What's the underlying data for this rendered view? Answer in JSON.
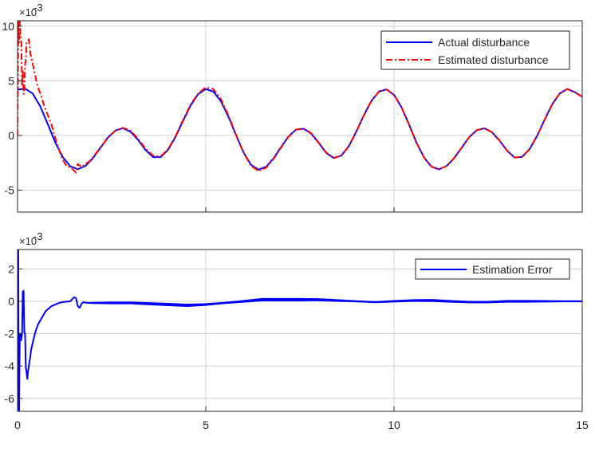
{
  "chart_data": [
    {
      "type": "line",
      "title": "",
      "xlabel": "",
      "ylabel": "",
      "xlim": [
        0,
        15
      ],
      "ylim": [
        -7,
        10.5
      ],
      "y_scale_exponent_label": "×10",
      "y_scale_exponent": "-3",
      "grid": true,
      "legend_position": "top-right",
      "x_ticks": [
        "0",
        "5",
        "10",
        "15"
      ],
      "y_ticks": [
        "-5",
        "0",
        "5",
        "10"
      ],
      "series": [
        {
          "name": "Actual disturbance",
          "color": "#0000ff",
          "style": "solid",
          "x": [
            0,
            0.2,
            0.4,
            0.6,
            0.8,
            1.0,
            1.2,
            1.4,
            1.6,
            1.8,
            2.0,
            2.2,
            2.4,
            2.6,
            2.8,
            3.0,
            3.2,
            3.4,
            3.6,
            3.8,
            4.0,
            4.2,
            4.4,
            4.6,
            4.8,
            5.0,
            5.2,
            5.4,
            5.6,
            5.8,
            6.0,
            6.2,
            6.4,
            6.6,
            6.8,
            7.0,
            7.2,
            7.4,
            7.6,
            7.8,
            8.0,
            8.2,
            8.4,
            8.6,
            8.8,
            9.0,
            9.2,
            9.4,
            9.6,
            9.8,
            10.0,
            10.2,
            10.4,
            10.6,
            10.8,
            11.0,
            11.2,
            11.4,
            11.6,
            11.8,
            12.0,
            12.2,
            12.4,
            12.6,
            12.8,
            13.0,
            13.2,
            13.4,
            13.6,
            13.8,
            14.0,
            14.2,
            14.4,
            14.6,
            14.8,
            15.0
          ],
          "values": [
            4.2,
            4.28,
            3.85,
            2.69,
            1.07,
            -0.61,
            -1.97,
            -2.82,
            -3.08,
            -2.79,
            -2.08,
            -1.13,
            -0.18,
            0.46,
            0.67,
            0.35,
            -0.39,
            -1.32,
            -1.98,
            -1.98,
            -1.3,
            -0.1,
            1.37,
            2.77,
            3.8,
            4.25,
            4.02,
            3.14,
            1.74,
            0.07,
            -1.52,
            -2.68,
            -3.12,
            -2.87,
            -2.09,
            -1.05,
            -0.08,
            0.55,
            0.62,
            0.17,
            -0.67,
            -1.59,
            -2.06,
            -1.84,
            -0.97,
            0.37,
            1.86,
            3.17,
            4.02,
            4.22,
            3.72,
            2.57,
            1.0,
            -0.68,
            -2.03,
            -2.86,
            -3.09,
            -2.78,
            -2.06,
            -1.1,
            -0.14,
            0.49,
            0.66,
            0.31,
            -0.45,
            -1.37,
            -2.01,
            -1.96,
            -1.25,
            -0.04,
            1.44,
            2.84,
            3.84,
            4.26,
            3.97,
            3.55
          ]
        },
        {
          "name": "Estimated disturbance",
          "color": "#ff0000",
          "style": "dash-dot",
          "x": [
            0,
            0.02,
            0.04,
            0.06,
            0.08,
            0.1,
            0.12,
            0.14,
            0.16,
            0.18,
            0.2,
            0.22,
            0.24,
            0.26,
            0.28,
            0.3,
            0.32,
            0.34,
            0.36,
            0.4,
            0.45,
            0.5,
            0.55,
            0.6,
            0.7,
            0.8,
            0.9,
            1.0,
            1.1,
            1.2,
            1.3,
            1.4,
            1.5,
            1.55,
            1.6,
            1.7,
            1.8,
            1.9,
            2.0,
            2.2,
            2.4,
            2.6,
            2.8,
            3.0,
            3.2,
            3.4,
            3.6,
            3.8,
            4.0,
            4.2,
            4.4,
            4.6,
            4.8,
            5.0,
            5.2,
            5.4,
            5.6,
            5.8,
            6.0,
            6.2,
            6.4,
            6.6,
            6.8,
            7.0,
            7.2,
            7.4,
            7.6,
            7.8,
            8.0,
            8.2,
            8.4,
            8.6,
            8.8,
            9.0,
            9.2,
            9.4,
            9.6,
            9.8,
            10.0,
            10.2,
            10.4,
            10.6,
            10.8,
            11.0,
            11.2,
            11.4,
            11.6,
            11.8,
            12.0,
            12.2,
            12.4,
            12.6,
            12.8,
            13.0,
            13.2,
            13.4,
            13.6,
            13.8,
            14.0,
            14.2,
            14.4,
            14.6,
            14.8,
            15.0
          ],
          "values": [
            0.0,
            10.5,
            8.5,
            10.5,
            9.0,
            8.5,
            4.5,
            6.0,
            3.8,
            3.9,
            6.5,
            7.0,
            8.5,
            8.6,
            8.7,
            8.8,
            8.3,
            7.5,
            7.2,
            6.6,
            5.8,
            5.0,
            4.3,
            3.9,
            2.8,
            1.9,
            1.0,
            -0.2,
            -1.3,
            -2.2,
            -2.8,
            -2.9,
            -3.2,
            -3.4,
            -2.6,
            -2.9,
            -2.6,
            -2.4,
            -2.0,
            -1.1,
            -0.2,
            0.45,
            0.7,
            0.45,
            -0.3,
            -1.2,
            -1.85,
            -1.9,
            -1.25,
            -0.05,
            1.45,
            2.85,
            3.85,
            4.4,
            4.25,
            3.35,
            1.85,
            0.1,
            -1.55,
            -2.75,
            -3.25,
            -2.95,
            -2.15,
            -1.1,
            -0.1,
            0.55,
            0.65,
            0.2,
            -0.65,
            -1.55,
            -2.05,
            -1.85,
            -0.97,
            0.37,
            1.86,
            3.17,
            4.02,
            4.22,
            3.72,
            2.57,
            1.0,
            -0.68,
            -2.03,
            -2.86,
            -3.09,
            -2.78,
            -2.06,
            -1.1,
            -0.14,
            0.49,
            0.66,
            0.31,
            -0.45,
            -1.37,
            -2.01,
            -1.96,
            -1.25,
            -0.04,
            1.44,
            2.84,
            3.84,
            4.26,
            3.97,
            3.55
          ]
        }
      ]
    },
    {
      "type": "line",
      "title": "",
      "xlabel": "",
      "ylabel": "",
      "xlim": [
        0,
        15
      ],
      "ylim": [
        -6.8,
        3.2
      ],
      "y_scale_exponent_label": "×10",
      "y_scale_exponent": "-3",
      "grid": true,
      "legend_position": "top-right",
      "x_ticks": [
        "0",
        "5",
        "10",
        "15"
      ],
      "y_ticks": [
        "-6",
        "-4",
        "-2",
        "0",
        "2"
      ],
      "series": [
        {
          "name": "Estimation Error",
          "color": "#0000ff",
          "style": "solid",
          "x": [
            0,
            0.01,
            0.02,
            0.03,
            0.04,
            0.05,
            0.06,
            0.07,
            0.08,
            0.1,
            0.12,
            0.14,
            0.16,
            0.18,
            0.2,
            0.22,
            0.24,
            0.26,
            0.28,
            0.3,
            0.32,
            0.34,
            0.36,
            0.38,
            0.4,
            0.45,
            0.5,
            0.55,
            0.6,
            0.65,
            0.7,
            0.75,
            0.8,
            0.85,
            0.9,
            0.95,
            1.0,
            1.1,
            1.2,
            1.3,
            1.4,
            1.5,
            1.55,
            1.6,
            1.65,
            1.7,
            1.75,
            1.8,
            1.9,
            2.0,
            2.5,
            3.0,
            3.5,
            4.0,
            4.5,
            5.0,
            5.5,
            6.0,
            6.5,
            7.0,
            7.5,
            8.0,
            8.5,
            9.0,
            9.5,
            10.0,
            10.5,
            11.0,
            11.5,
            12.0,
            12.5,
            13.0,
            13.5,
            14.0,
            14.5,
            15.0
          ],
          "values": [
            3.2,
            -6.8,
            3.2,
            -6.8,
            -6.8,
            -4.0,
            -2.4,
            -2.0,
            -2.2,
            -2.4,
            -2.0,
            0.6,
            0.65,
            -1.9,
            -2.0,
            -4.1,
            -4.4,
            -4.8,
            -4.3,
            -4.0,
            -3.7,
            -3.4,
            -3.0,
            -2.8,
            -2.6,
            -2.1,
            -1.7,
            -1.4,
            -1.2,
            -1.0,
            -0.8,
            -0.6,
            -0.5,
            -0.4,
            -0.3,
            -0.25,
            -0.2,
            -0.1,
            -0.05,
            -0.02,
            0.0,
            0.25,
            0.2,
            -0.3,
            -0.4,
            -0.15,
            -0.05,
            -0.08,
            -0.1,
            -0.1,
            -0.1,
            -0.1,
            -0.15,
            -0.2,
            -0.25,
            -0.2,
            -0.1,
            0.0,
            0.1,
            0.1,
            0.1,
            0.1,
            0.05,
            0.0,
            -0.05,
            0.0,
            0.05,
            0.05,
            0.0,
            -0.05,
            -0.05,
            0.0,
            0.0,
            0.0,
            0.0,
            0.0
          ],
          "band_halfwidth": [
            0,
            0,
            0,
            0,
            0,
            0,
            0,
            0,
            0,
            0,
            0,
            0,
            0,
            0,
            0,
            0,
            0,
            0,
            0,
            0,
            0,
            0,
            0,
            0,
            0,
            0,
            0,
            0,
            0,
            0,
            0,
            0,
            0,
            0,
            0,
            0,
            0,
            0,
            0,
            0,
            0,
            0,
            0,
            0,
            0,
            0,
            0,
            0.03,
            0.05,
            0.06,
            0.08,
            0.08,
            0.09,
            0.1,
            0.1,
            0.08,
            0.06,
            0.08,
            0.1,
            0.1,
            0.1,
            0.09,
            0.08,
            0.06,
            0.06,
            0.07,
            0.08,
            0.09,
            0.08,
            0.07,
            0.07,
            0.08,
            0.08,
            0.07,
            0.06,
            0.06
          ]
        }
      ]
    }
  ]
}
